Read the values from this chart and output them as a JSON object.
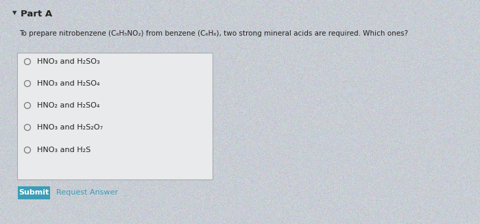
{
  "bg_color": "#c8cdd4",
  "panel_bg": "#c8cdd4",
  "box_bg": "#f0f0f0",
  "part_a_label": "Part A",
  "question": "To prepare nitrobenzene (C₆H₅NO₂) from benzene (C₆H₆), two strong mineral acids are required. Which ones?",
  "options": [
    "HNO₃ and H₂SO₃",
    "HNO₃ and H₂SO₄",
    "HNO₂ and H₂SO₄",
    "HNO₃ and H₂S₂O₇",
    "HNO₃ and H₂S"
  ],
  "submit_label": "Submit",
  "request_answer_label": "Request Answer",
  "submit_bg": "#3b9db5",
  "submit_text_color": "#ffffff",
  "request_answer_color": "#3b9db5",
  "triangle": "▼",
  "question_fontsize": 7.5,
  "option_fontsize": 8.0,
  "part_a_fontsize": 9.5,
  "submit_fontsize": 8.0,
  "request_fontsize": 8.0
}
